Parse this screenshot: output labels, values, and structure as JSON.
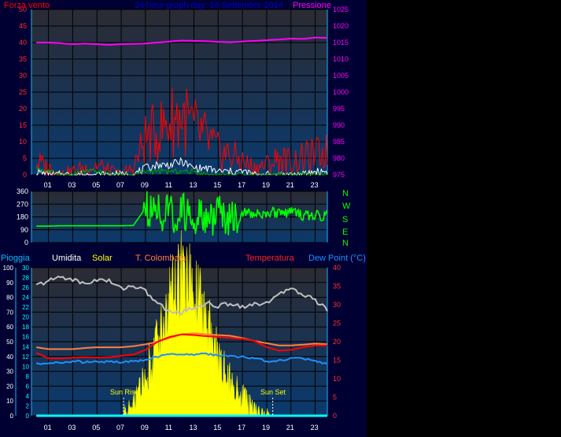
{
  "colors": {
    "background": "#000033",
    "plot_bg_top": "#2b2b33",
    "plot_bg_bottom": "#0a3a6e",
    "grid": "#000000",
    "wind": "#ff0000",
    "gust": "#ffffff",
    "avg_wind": "#00a000",
    "pressure": "#ff00ff",
    "direction": "#00ff00",
    "rain": "#00ffff",
    "humidity": "#c0c0c0",
    "solar": "#ffff00",
    "colombaia": "#ff8040",
    "temperature": "#ff0000",
    "dewpoint": "#1e90ff"
  },
  "chart_data": [
    {
      "type": "line",
      "title": "24 hour graph day: 18 Settembre 2014",
      "left_axis_label": "Forza vento",
      "right_axis_label": "Pressione",
      "x_ticks": [
        "01",
        "03",
        "05",
        "07",
        "09",
        "11",
        "13",
        "15",
        "17",
        "19",
        "21",
        "23"
      ],
      "y_left_ticks": [
        "0",
        "5",
        "10",
        "15",
        "20",
        "25",
        "30",
        "35",
        "40",
        "45",
        "50"
      ],
      "y_left_range": [
        0,
        50
      ],
      "y_right_ticks": [
        "975",
        "980",
        "985",
        "990",
        "995",
        "1000",
        "1005",
        "1010",
        "1015",
        "1020",
        "1025"
      ],
      "y_right_range": [
        975,
        1025
      ],
      "series": [
        {
          "key": "pressure",
          "values": [
            1015,
            1015,
            1014.8,
            1014.5,
            1014.7,
            1014.5,
            1014.3,
            1014.5,
            1014.6,
            1014.7,
            1015,
            1015.3,
            1015.6,
            1015.5,
            1015.4,
            1015.2,
            1015.1,
            1015.3,
            1015.5,
            1015.7,
            1015.9,
            1016.2,
            1016.1,
            1016.5,
            1016.4
          ]
        },
        {
          "key": "wind",
          "values": [
            4,
            2,
            0,
            1,
            2,
            3,
            1,
            0,
            2,
            11,
            13,
            16,
            18,
            14,
            11,
            7,
            6,
            4,
            2,
            3,
            5,
            4,
            5,
            6,
            7
          ]
        },
        {
          "key": "gust",
          "values": [
            1,
            0,
            0,
            0,
            0,
            0,
            0,
            0,
            0,
            2,
            3,
            3,
            4,
            2,
            2,
            1,
            1,
            1,
            0,
            0,
            0,
            0,
            0,
            1,
            1
          ]
        },
        {
          "key": "avg_wind",
          "values": [
            2,
            1,
            0,
            0,
            1,
            1,
            0,
            0,
            0,
            1,
            1,
            1,
            1,
            1,
            0,
            0,
            0,
            0,
            0,
            0,
            0,
            0,
            0,
            0,
            0
          ]
        }
      ]
    },
    {
      "type": "line",
      "y_left_ticks": [
        "0",
        "90",
        "180",
        "270",
        "360"
      ],
      "y_left_range": [
        0,
        360
      ],
      "compass_labels": [
        "N",
        "W",
        "S",
        "E",
        "N"
      ],
      "series": [
        {
          "key": "direction",
          "values": [
            115,
            115,
            118,
            118,
            118,
            118,
            118,
            118,
            120,
            240,
            210,
            190,
            220,
            200,
            180,
            190,
            175,
            210,
            210,
            210,
            210,
            210,
            190,
            200,
            180
          ]
        }
      ]
    },
    {
      "type": "line",
      "legend": [
        "Pioggia",
        "Umidita",
        "Solar",
        "T. Colombaia",
        "Temperatura",
        "Dew Point (°C)"
      ],
      "y_rain_ticks": [
        "0",
        "10",
        "20",
        "30",
        "40",
        "50",
        "60",
        "70",
        "80",
        "90",
        "100"
      ],
      "y_solar_ticks": [
        "0",
        "2",
        "4",
        "6",
        "8",
        "10",
        "12",
        "14",
        "16",
        "18",
        "20",
        "22",
        "24",
        "26",
        "28",
        "30"
      ],
      "y_temp_ticks": [
        "0",
        "5",
        "10",
        "15",
        "20",
        "25",
        "30",
        "35",
        "40"
      ],
      "y_temp_range": [
        0,
        40
      ],
      "annotations": [
        "Sun Rise",
        "Sun Set"
      ],
      "sunrise_hour": 7.2,
      "sunset_hour": 19.5,
      "series": [
        {
          "key": "humidity",
          "values": [
            88,
            91,
            94,
            92,
            89,
            92,
            91,
            86,
            88,
            84,
            76,
            70,
            70,
            73,
            76,
            74,
            76,
            74,
            75,
            77,
            81,
            87,
            82,
            78,
            72
          ]
        },
        {
          "key": "solar",
          "values": [
            0,
            0,
            0,
            0,
            0,
            0,
            0,
            0,
            2,
            8,
            15,
            23,
            28,
            25,
            20,
            12,
            7,
            4,
            1,
            0,
            0,
            0,
            0,
            0,
            0
          ]
        },
        {
          "key": "colombaia",
          "values": [
            18.5,
            18,
            18,
            18,
            18.3,
            18.5,
            18.5,
            18.5,
            18.8,
            19.3,
            20,
            21,
            22,
            22.3,
            22,
            21.8,
            21.6,
            21,
            20.2,
            19.6,
            19,
            19,
            19.2,
            19.5,
            19.3
          ]
        },
        {
          "key": "temperature",
          "values": [
            17,
            15.5,
            15.5,
            15.7,
            15.8,
            15.7,
            15.8,
            16.2,
            16.5,
            17.8,
            20,
            21.3,
            22,
            21.8,
            21.5,
            21.3,
            21,
            20.8,
            20.2,
            18.5,
            17.6,
            17.8,
            18.5,
            19,
            19
          ]
        },
        {
          "key": "dewpoint",
          "values": [
            14,
            14,
            14.5,
            14.7,
            14.5,
            14.7,
            14.5,
            14.5,
            14.7,
            15,
            16,
            16.5,
            16.8,
            16.5,
            16.7,
            16.4,
            16,
            16,
            15.6,
            14.7,
            14.8,
            15.5,
            15.5,
            14.7,
            14
          ]
        },
        {
          "key": "rain",
          "values": [
            0,
            0,
            0,
            0,
            0,
            0,
            0,
            0,
            0,
            0,
            0,
            0,
            0,
            0,
            0,
            0,
            0,
            0,
            0,
            0,
            0,
            0,
            0,
            0,
            0
          ]
        }
      ]
    }
  ]
}
